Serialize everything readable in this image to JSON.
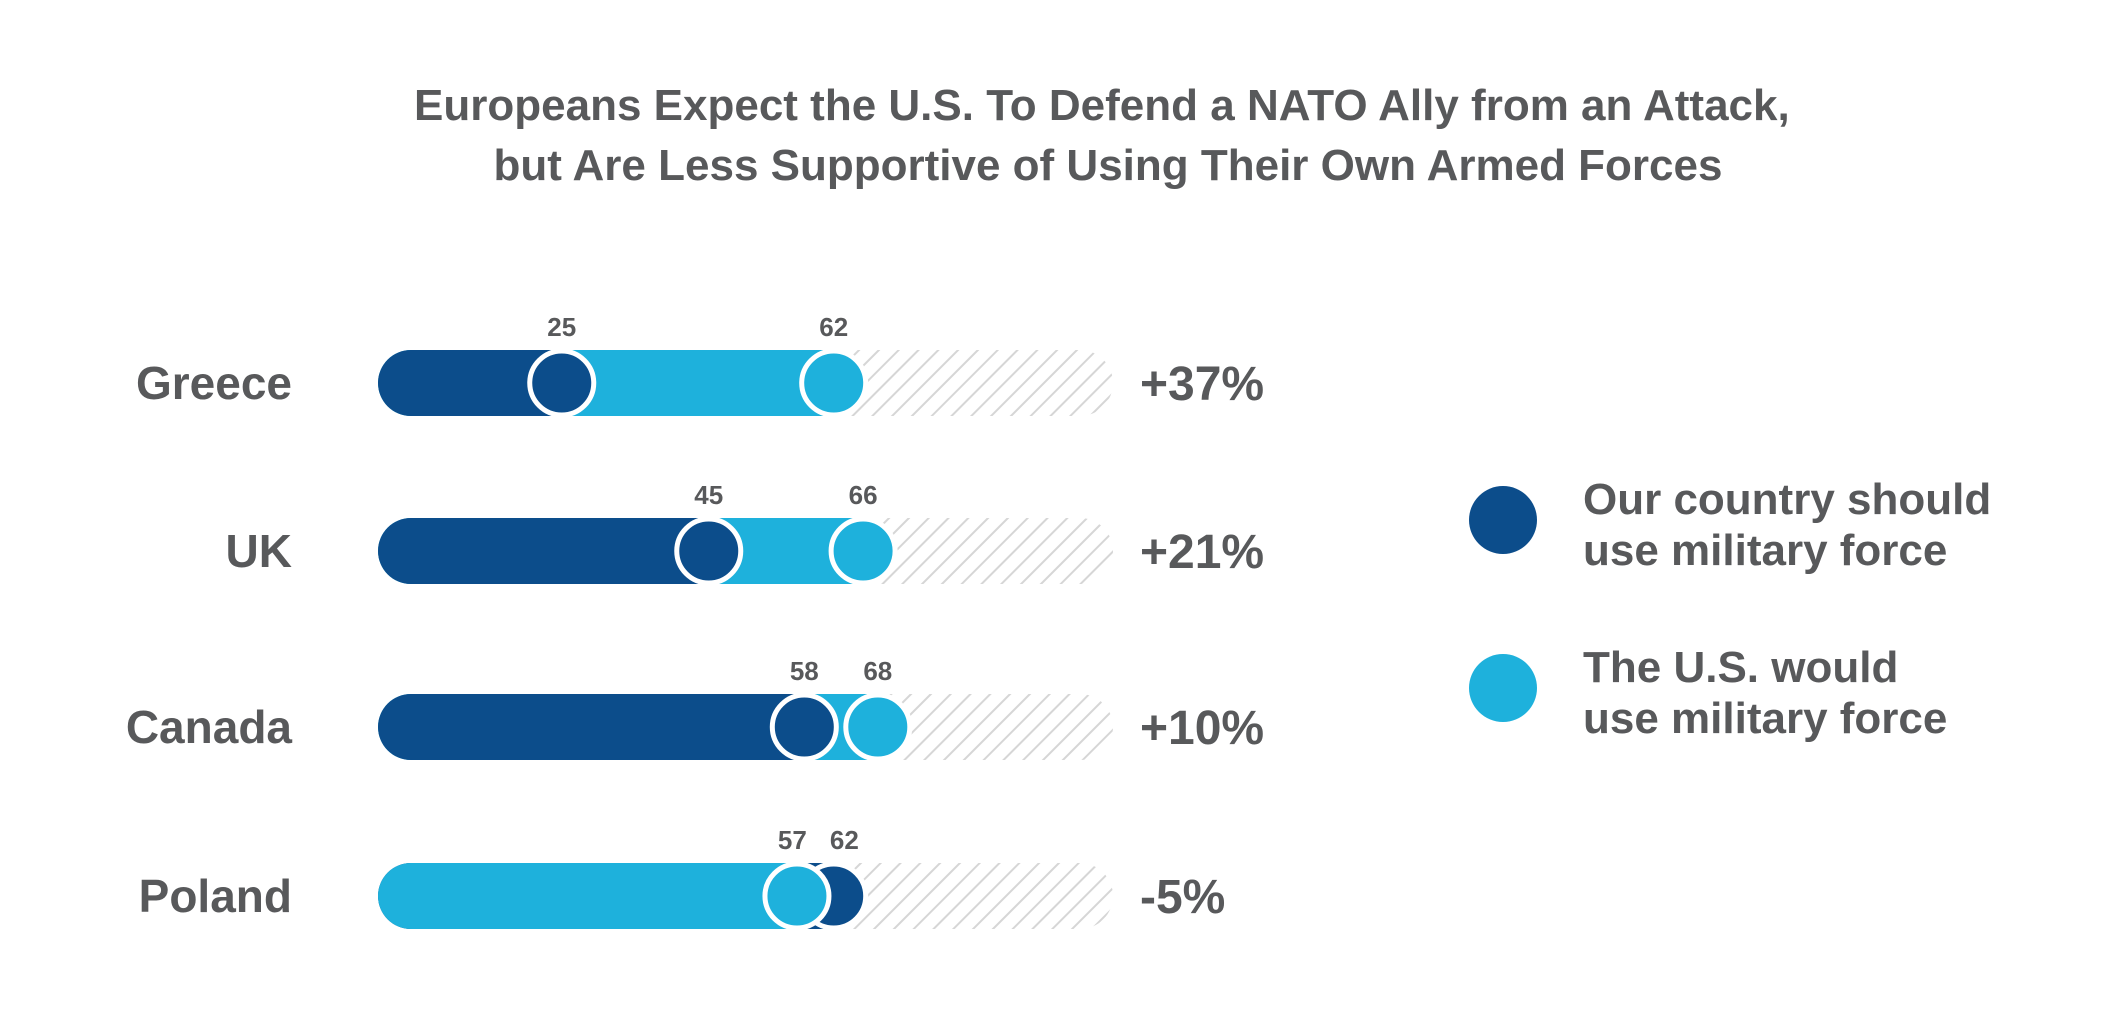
{
  "chart_data": {
    "type": "bar",
    "title": [
      "Europeans Expect the U.S. To Defend a NATO Ally from an Attack,",
      "but Are Less Supportive of Using Their Own Armed Forces"
    ],
    "categories": [
      "Greece",
      "UK",
      "Canada",
      "Poland"
    ],
    "series": [
      {
        "name": [
          "Our country should",
          "use military force"
        ],
        "values": [
          25,
          45,
          58,
          62
        ],
        "color": "#0c4d8b"
      },
      {
        "name": [
          "The U.S. would",
          "use military force"
        ],
        "values": [
          62,
          66,
          68,
          57
        ],
        "color": "#1eb1dc"
      }
    ],
    "differences": [
      "+37%",
      "+21%",
      "+10%",
      "-5%"
    ],
    "xlim": [
      0,
      100
    ],
    "grid": false,
    "legend": "right",
    "colors": {
      "own": "#0c4d8b",
      "us": "#1eb1dc",
      "track_fill": "#ffffff",
      "track_hatch": "#d6d6d6",
      "text": "#58595b"
    }
  }
}
